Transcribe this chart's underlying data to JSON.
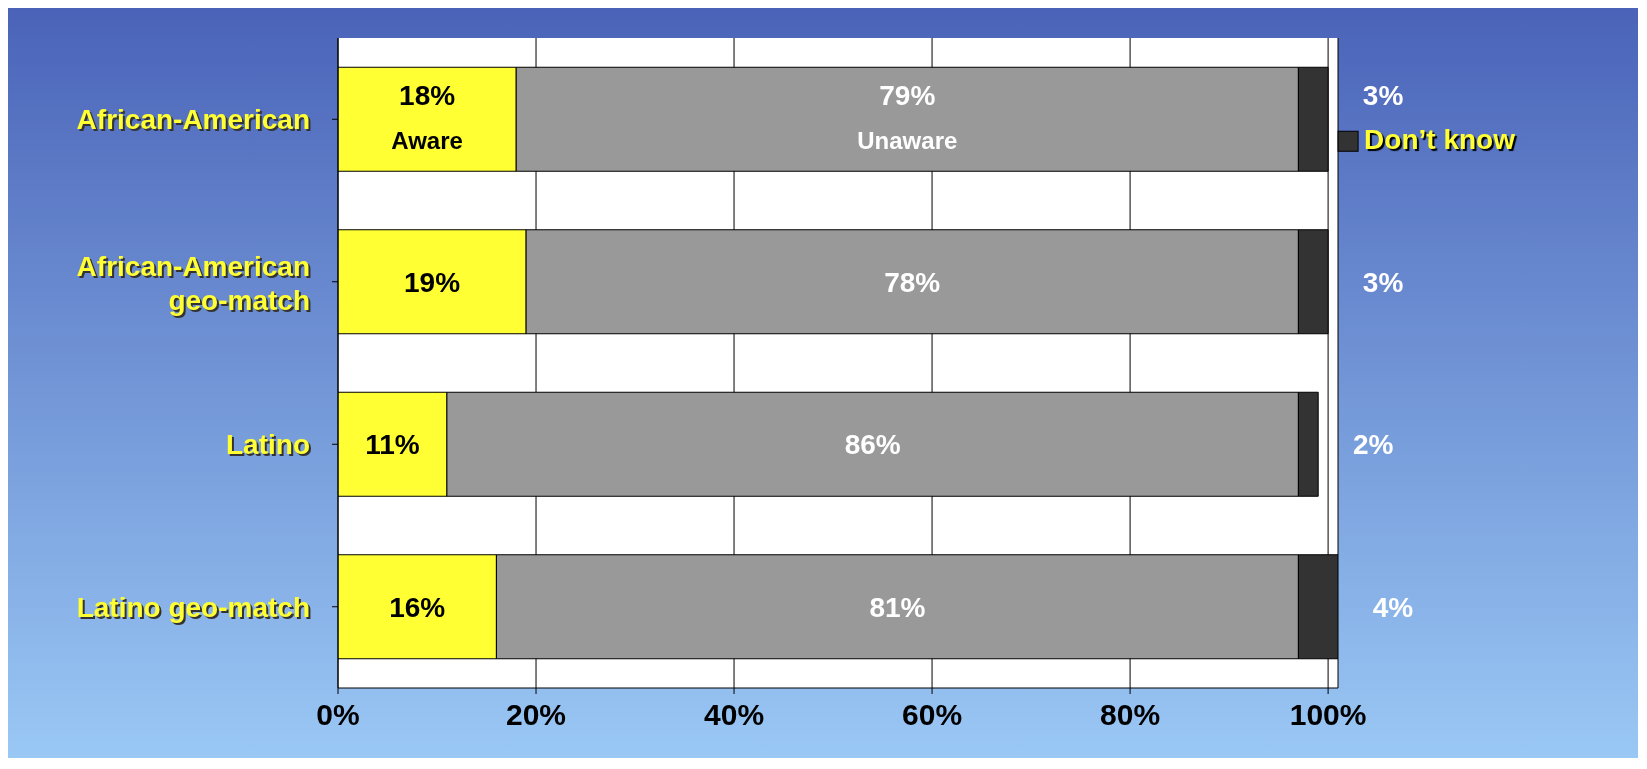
{
  "chart_data": {
    "type": "bar",
    "orientation": "horizontal",
    "stacked": true,
    "categories": [
      "African-American",
      "African-American geo-match",
      "Latino",
      "Latino geo-match"
    ],
    "series": [
      {
        "name": "Aware",
        "color": "#ffff33",
        "values": [
          18,
          19,
          11,
          16
        ],
        "value_labels": [
          "18%",
          "19%",
          "11%",
          "16%"
        ]
      },
      {
        "name": "Unaware",
        "color": "#999999",
        "values": [
          79,
          78,
          86,
          81
        ],
        "value_labels": [
          "79%",
          "78%",
          "86%",
          "81%"
        ]
      },
      {
        "name": "Don’t know",
        "color": "#333333",
        "values": [
          3,
          3,
          2,
          4
        ],
        "value_labels": [
          "3%",
          "3%",
          "2%",
          "4%"
        ]
      }
    ],
    "xlim": [
      0,
      101
    ],
    "xticks": [
      {
        "value": 0,
        "label": "0%"
      },
      {
        "value": 20,
        "label": "20%"
      },
      {
        "value": 40,
        "label": "40%"
      },
      {
        "value": 60,
        "label": "60%"
      },
      {
        "value": 80,
        "label": "80%"
      },
      {
        "value": 100,
        "label": "100%"
      }
    ],
    "grid": "x"
  }
}
